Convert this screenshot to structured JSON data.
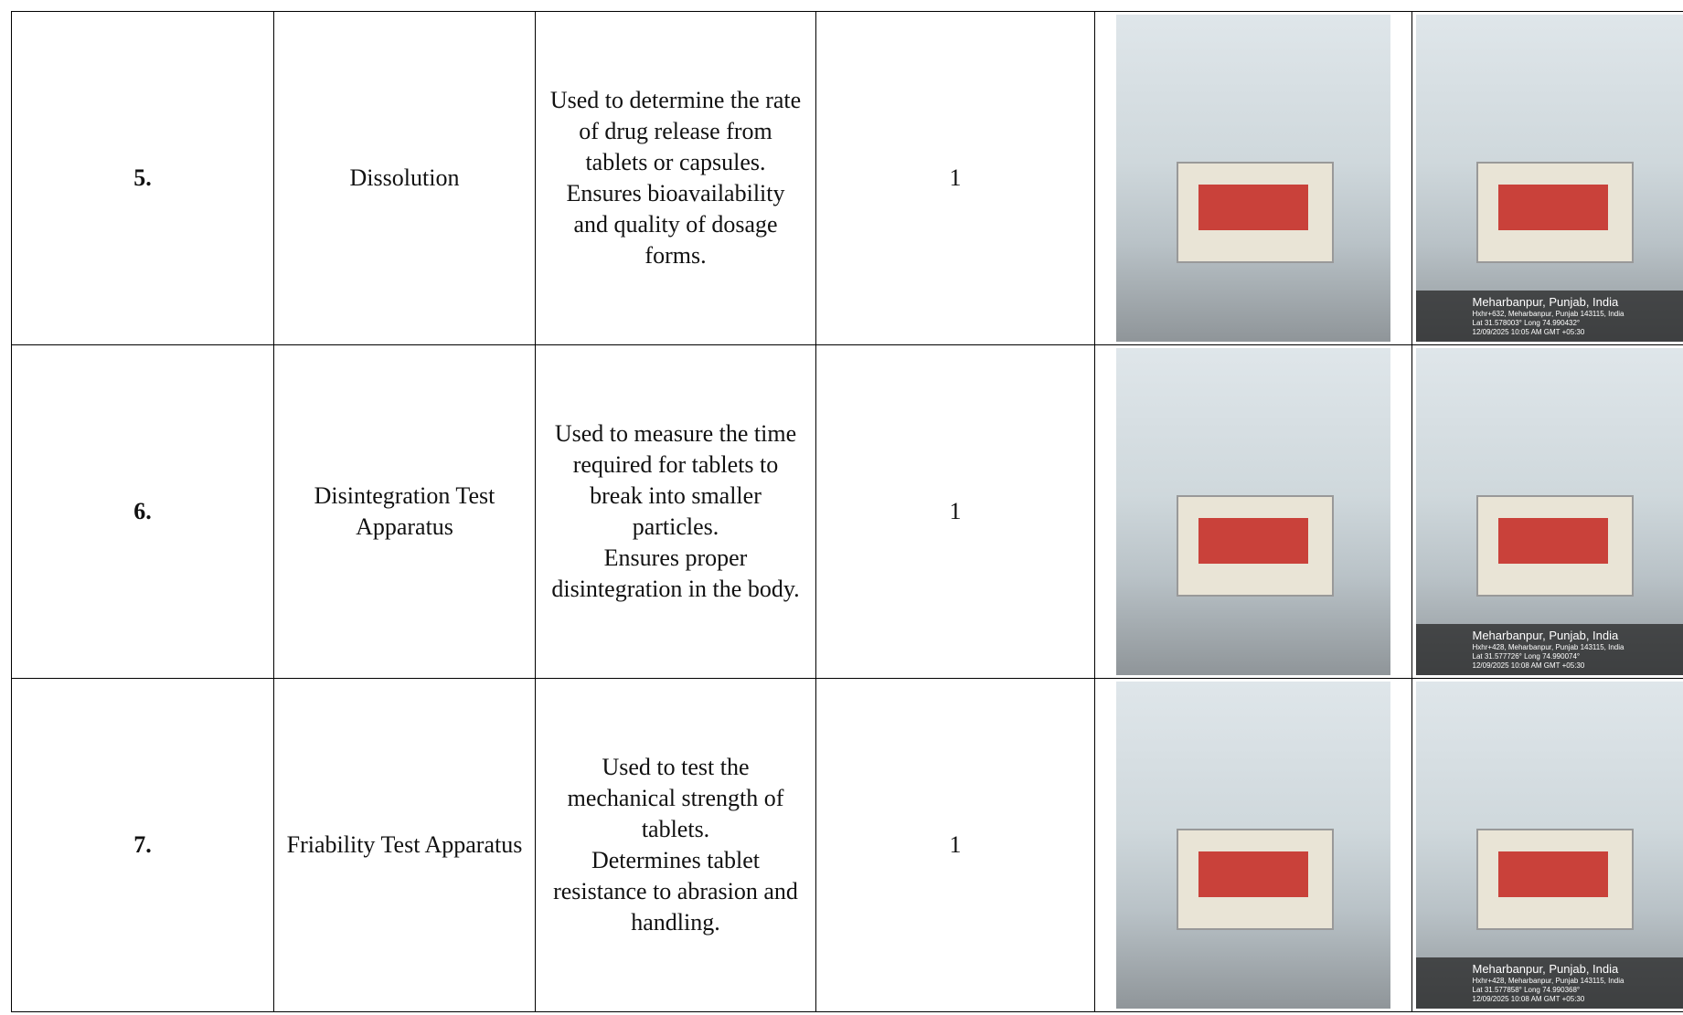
{
  "table": {
    "rows": [
      {
        "number": "5.",
        "name": "Dissolution",
        "description": [
          "Used to determine the rate of drug release from tablets or capsules.",
          "Ensures bioavailability and quality of dosage forms."
        ],
        "quantity": "1",
        "geotag": {
          "place": "Meharbanpur, Punjab, India",
          "address": "Hxhr+632, Meharbanpur, Punjab 143115, India",
          "coords": "Lat 31.578003° Long 74.990432°",
          "time": "12/09/2025 10:05 AM GMT +05:30"
        }
      },
      {
        "number": "6.",
        "name": "Disintegration Test Apparatus",
        "description": [
          "Used to measure the time required for tablets to break into smaller particles.",
          "Ensures proper disintegration in the body."
        ],
        "quantity": "1",
        "geotag": {
          "place": "Meharbanpur, Punjab, India",
          "address": "Hxhr+428, Meharbanpur, Punjab 143115, India",
          "coords": "Lat 31.577726° Long 74.990074°",
          "time": "12/09/2025 10:08 AM GMT +05:30"
        }
      },
      {
        "number": "7.",
        "name": "Friability Test Apparatus",
        "description": [
          "Used to test the mechanical strength of tablets.",
          "Determines tablet resistance to abrasion and handling."
        ],
        "quantity": "1",
        "geotag": {
          "place": "Meharbanpur, Punjab, India",
          "address": "Hxhr+428, Meharbanpur, Punjab 143115, India",
          "coords": "Lat 31.577858° Long 74.990368°",
          "time": "12/09/2025 10:08 AM GMT +05:30"
        }
      }
    ]
  }
}
